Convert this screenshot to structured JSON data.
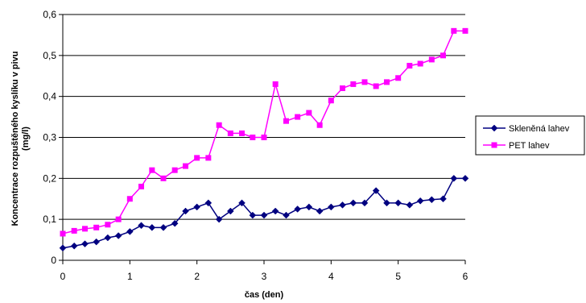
{
  "chart_data": {
    "type": "line",
    "xlabel": "čas (den)",
    "ylabel_line1": "Koncentrace rozpuštěného kyslíku v pivu",
    "ylabel_line2": "(mg/l)",
    "xlim": [
      0,
      6
    ],
    "ylim": [
      0,
      0.6
    ],
    "x_ticks": [
      0,
      1,
      2,
      3,
      4,
      5,
      6
    ],
    "y_ticks": [
      0,
      0.1,
      0.2,
      0.3,
      0.4,
      0.5,
      0.6
    ],
    "x_tick_labels": [
      "0",
      "1",
      "2",
      "3",
      "4",
      "5",
      "6"
    ],
    "y_tick_labels": [
      "0",
      "0,1",
      "0,2",
      "0,3",
      "0,4",
      "0,5",
      "0,6"
    ],
    "grid": "horizontal",
    "legend_position": "right",
    "series": [
      {
        "name": "Skleněná lahev",
        "color": "#000080",
        "marker": "diamond",
        "x": [
          0,
          0.17,
          0.33,
          0.5,
          0.67,
          0.83,
          1.0,
          1.17,
          1.33,
          1.5,
          1.67,
          1.83,
          2.0,
          2.17,
          2.33,
          2.5,
          2.67,
          2.83,
          3.0,
          3.17,
          3.33,
          3.5,
          3.67,
          3.83,
          4.0,
          4.17,
          4.33,
          4.5,
          4.67,
          4.83,
          5.0,
          5.17,
          5.33,
          5.5,
          5.67,
          5.83,
          6.0
        ],
        "values": [
          0.03,
          0.035,
          0.04,
          0.045,
          0.055,
          0.06,
          0.07,
          0.085,
          0.08,
          0.08,
          0.09,
          0.12,
          0.13,
          0.14,
          0.1,
          0.12,
          0.14,
          0.11,
          0.11,
          0.12,
          0.11,
          0.125,
          0.13,
          0.12,
          0.13,
          0.135,
          0.14,
          0.14,
          0.17,
          0.14,
          0.14,
          0.135,
          0.145,
          0.148,
          0.15,
          0.2,
          0.2
        ]
      },
      {
        "name": "PET lahev",
        "color": "#ff00ff",
        "marker": "square",
        "x": [
          0,
          0.17,
          0.33,
          0.5,
          0.67,
          0.83,
          1.0,
          1.17,
          1.33,
          1.5,
          1.67,
          1.83,
          2.0,
          2.17,
          2.33,
          2.5,
          2.67,
          2.83,
          3.0,
          3.17,
          3.33,
          3.5,
          3.67,
          3.83,
          4.0,
          4.17,
          4.33,
          4.5,
          4.67,
          4.83,
          5.0,
          5.17,
          5.33,
          5.5,
          5.67,
          5.83,
          6.0
        ],
        "values": [
          0.065,
          0.072,
          0.077,
          0.08,
          0.087,
          0.1,
          0.15,
          0.18,
          0.22,
          0.2,
          0.22,
          0.23,
          0.25,
          0.25,
          0.33,
          0.31,
          0.31,
          0.3,
          0.3,
          0.43,
          0.34,
          0.35,
          0.36,
          0.33,
          0.39,
          0.42,
          0.43,
          0.435,
          0.425,
          0.435,
          0.445,
          0.475,
          0.48,
          0.49,
          0.5,
          0.56,
          0.56
        ]
      }
    ]
  }
}
